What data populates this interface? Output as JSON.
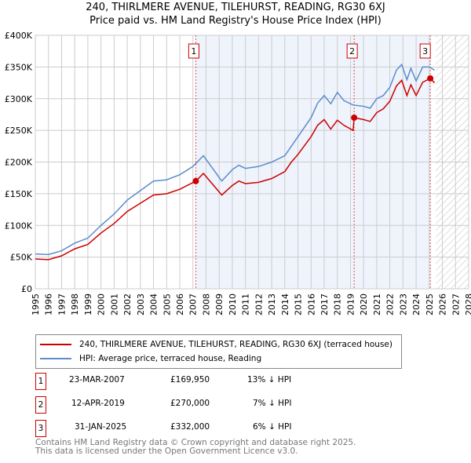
{
  "chart_data": {
    "type": "line",
    "title": "240, THIRLMERE AVENUE, TILEHURST, READING, RG30 6XJ",
    "subtitle": "Price paid vs. HM Land Registry's House Price Index (HPI)",
    "xlim": [
      1995,
      2028
    ],
    "ylim": [
      0,
      400000
    ],
    "yticks": [
      {
        "v": 0,
        "l": "£0"
      },
      {
        "v": 50000,
        "l": "£50K"
      },
      {
        "v": 100000,
        "l": "£100K"
      },
      {
        "v": 150000,
        "l": "£150K"
      },
      {
        "v": 200000,
        "l": "£200K"
      },
      {
        "v": 250000,
        "l": "£250K"
      },
      {
        "v": 300000,
        "l": "£300K"
      },
      {
        "v": 350000,
        "l": "£350K"
      },
      {
        "v": 400000,
        "l": "£400K"
      }
    ],
    "xticks": [
      "1995",
      "1996",
      "1997",
      "1998",
      "1999",
      "2000",
      "2001",
      "2002",
      "2003",
      "2004",
      "2005",
      "2006",
      "2007",
      "2008",
      "2009",
      "2010",
      "2011",
      "2012",
      "2013",
      "2014",
      "2015",
      "2016",
      "2017",
      "2018",
      "2019",
      "2020",
      "2021",
      "2022",
      "2023",
      "2024",
      "2025",
      "2026",
      "2027",
      "2028"
    ],
    "grid": true,
    "series": [
      {
        "name": "240, THIRLMERE AVENUE, TILEHURST, READING, RG30 6XJ (terraced house)",
        "color": "#cc0000",
        "points": [
          [
            1995,
            47000
          ],
          [
            1996,
            46000
          ],
          [
            1997,
            52000
          ],
          [
            1998,
            63000
          ],
          [
            1999,
            70000
          ],
          [
            2000,
            88000
          ],
          [
            2001,
            103000
          ],
          [
            2002,
            122000
          ],
          [
            2003,
            135000
          ],
          [
            2004,
            148000
          ],
          [
            2005,
            150000
          ],
          [
            2006,
            157000
          ],
          [
            2007.22,
            169950
          ],
          [
            2007.8,
            182000
          ],
          [
            2008.5,
            165000
          ],
          [
            2009.2,
            148000
          ],
          [
            2010,
            163000
          ],
          [
            2010.5,
            170000
          ],
          [
            2011,
            166000
          ],
          [
            2012,
            168000
          ],
          [
            2013,
            174000
          ],
          [
            2014,
            185000
          ],
          [
            2014.5,
            200000
          ],
          [
            2015,
            212000
          ],
          [
            2016,
            240000
          ],
          [
            2016.5,
            258000
          ],
          [
            2017,
            267000
          ],
          [
            2017.5,
            252000
          ],
          [
            2018,
            266000
          ],
          [
            2018.5,
            258000
          ],
          [
            2019.2,
            250000
          ],
          [
            2019.28,
            270000
          ],
          [
            2020,
            267000
          ],
          [
            2020.5,
            264000
          ],
          [
            2021,
            278000
          ],
          [
            2021.5,
            284000
          ],
          [
            2022,
            296000
          ],
          [
            2022.5,
            320000
          ],
          [
            2022.9,
            329000
          ],
          [
            2023.3,
            305000
          ],
          [
            2023.6,
            322000
          ],
          [
            2024,
            305000
          ],
          [
            2024.5,
            326000
          ],
          [
            2025.08,
            332000
          ],
          [
            2025.4,
            325000
          ]
        ]
      },
      {
        "name": "HPI: Average price, terraced house, Reading",
        "color": "#5b8ccc",
        "points": [
          [
            1995,
            55000
          ],
          [
            1996,
            54000
          ],
          [
            1997,
            60000
          ],
          [
            1998,
            72000
          ],
          [
            1999,
            80000
          ],
          [
            2000,
            100000
          ],
          [
            2001,
            118000
          ],
          [
            2002,
            140000
          ],
          [
            2003,
            155000
          ],
          [
            2004,
            170000
          ],
          [
            2005,
            172000
          ],
          [
            2006,
            180000
          ],
          [
            2007,
            193000
          ],
          [
            2007.8,
            210000
          ],
          [
            2008.5,
            190000
          ],
          [
            2009.2,
            170000
          ],
          [
            2010,
            188000
          ],
          [
            2010.5,
            195000
          ],
          [
            2011,
            190000
          ],
          [
            2012,
            193000
          ],
          [
            2013,
            200000
          ],
          [
            2014,
            210000
          ],
          [
            2014.5,
            225000
          ],
          [
            2015,
            240000
          ],
          [
            2016,
            270000
          ],
          [
            2016.5,
            293000
          ],
          [
            2017,
            305000
          ],
          [
            2017.5,
            292000
          ],
          [
            2018,
            310000
          ],
          [
            2018.5,
            297000
          ],
          [
            2019.2,
            290000
          ],
          [
            2020,
            288000
          ],
          [
            2020.5,
            285000
          ],
          [
            2021,
            300000
          ],
          [
            2021.5,
            305000
          ],
          [
            2022,
            318000
          ],
          [
            2022.5,
            345000
          ],
          [
            2022.9,
            354000
          ],
          [
            2023.3,
            330000
          ],
          [
            2023.6,
            348000
          ],
          [
            2024,
            328000
          ],
          [
            2024.5,
            350000
          ],
          [
            2025,
            350000
          ],
          [
            2025.4,
            345000
          ]
        ]
      }
    ],
    "sales": [
      {
        "n": "1",
        "x": 2007.22,
        "y": 169950
      },
      {
        "n": "2",
        "x": 2019.28,
        "y": 270000
      },
      {
        "n": "3",
        "x": 2025.08,
        "y": 332000
      }
    ],
    "shaded_range": [
      2007.22,
      2025.08
    ],
    "forecast_from": 2025.5
  },
  "title_line1": "240, THIRLMERE AVENUE, TILEHURST, READING, RG30 6XJ",
  "title_line2": "Price paid vs. HM Land Registry's House Price Index (HPI)",
  "legend": [
    "240, THIRLMERE AVENUE, TILEHURST, READING, RG30 6XJ (terraced house)",
    "HPI: Average price, terraced house, Reading"
  ],
  "transactions": [
    {
      "n": "1",
      "date": "23-MAR-2007",
      "price": "£169,950",
      "hpi": "13% ↓ HPI"
    },
    {
      "n": "2",
      "date": "12-APR-2019",
      "price": "£270,000",
      "hpi": "7% ↓ HPI"
    },
    {
      "n": "3",
      "date": "31-JAN-2025",
      "price": "£332,000",
      "hpi": "6% ↓ HPI"
    }
  ],
  "footer": [
    "Contains HM Land Registry data © Crown copyright and database right 2025.",
    "This data is licensed under the Open Government Licence v3.0."
  ]
}
